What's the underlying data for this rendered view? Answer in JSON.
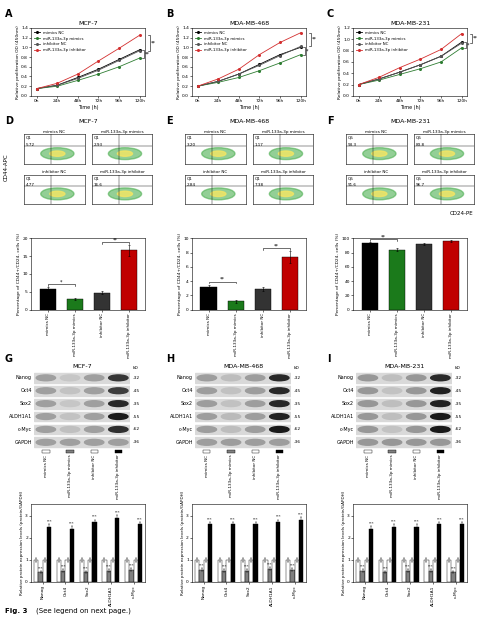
{
  "caption": "Fig. 3",
  "caption_note": "(See legend on next page.)",
  "chart_data": [
    {
      "panel": "A",
      "type": "line",
      "title": "MCF-7",
      "x_label": "Time (h)",
      "y_label": "Relative proliferation OD (450nm)",
      "x": [
        0,
        24,
        48,
        72,
        96,
        120
      ],
      "xlim": [
        -6,
        126
      ],
      "xticks": [
        {
          "value": 0,
          "label": "0h"
        },
        {
          "value": 24,
          "label": "24h"
        },
        {
          "value": 48,
          "label": "48h"
        },
        {
          "value": 72,
          "label": "72h"
        },
        {
          "value": 96,
          "label": "96h"
        },
        {
          "value": 120,
          "label": "120h"
        }
      ],
      "ylim": [
        0,
        1.4
      ],
      "yticks": [
        {
          "value": 0,
          "label": "0.0"
        },
        0.2,
        0.4,
        0.6,
        0.8,
        {
          "value": 1,
          "label": "1.0"
        },
        1.2,
        1.4
      ],
      "legend": "upper left",
      "marker": "o",
      "series": [
        {
          "name": "mimics NC",
          "color": "#000000",
          "values": [
            0.15,
            0.22,
            0.38,
            0.55,
            0.75,
            0.95
          ]
        },
        {
          "name": "miR-133a-3p mimics",
          "color": "#2e7d32",
          "values": [
            0.15,
            0.2,
            0.32,
            0.45,
            0.6,
            0.78
          ]
        },
        {
          "name": "inhibitor NC",
          "color": "#555555",
          "values": [
            0.15,
            0.22,
            0.36,
            0.53,
            0.73,
            0.93
          ]
        },
        {
          "name": "miR-133a-3p inhibitor",
          "color": "#d32f2f",
          "values": [
            0.15,
            0.26,
            0.45,
            0.72,
            0.98,
            1.25
          ]
        }
      ],
      "significance": [
        {
          "text": "**",
          "series": [
            0,
            1
          ]
        },
        {
          "text": "**",
          "series": [
            2,
            3
          ]
        }
      ]
    },
    {
      "panel": "B",
      "type": "line",
      "title": "MDA-MB-468",
      "x_label": "Time (h)",
      "y_label": "Relative proliferation OD (450nm)",
      "x": [
        0,
        24,
        48,
        72,
        96,
        120
      ],
      "xlim": [
        -6,
        126
      ],
      "xticks": [
        {
          "value": 0,
          "label": "0h"
        },
        {
          "value": 24,
          "label": "24h"
        },
        {
          "value": 48,
          "label": "48h"
        },
        {
          "value": 72,
          "label": "72h"
        },
        {
          "value": 96,
          "label": "96h"
        },
        {
          "value": 120,
          "label": "120h"
        }
      ],
      "ylim": [
        0,
        1.4
      ],
      "yticks": [
        {
          "value": 0,
          "label": "0.0"
        },
        0.2,
        0.4,
        0.6,
        0.8,
        {
          "value": 1,
          "label": "1.0"
        },
        1.2,
        1.4
      ],
      "legend": "upper left",
      "marker": "o",
      "series": [
        {
          "name": "mimics NC",
          "color": "#000000",
          "values": [
            0.2,
            0.3,
            0.45,
            0.65,
            0.85,
            1.0
          ]
        },
        {
          "name": "miR-133a-3p mimics",
          "color": "#2e7d32",
          "values": [
            0.2,
            0.28,
            0.38,
            0.52,
            0.68,
            0.85
          ]
        },
        {
          "name": "inhibitor NC",
          "color": "#555555",
          "values": [
            0.2,
            0.3,
            0.45,
            0.63,
            0.83,
            1.02
          ]
        },
        {
          "name": "miR-133a-3p inhibitor",
          "color": "#d32f2f",
          "values": [
            0.2,
            0.35,
            0.55,
            0.85,
            1.1,
            1.3
          ]
        }
      ],
      "significance": [
        {
          "text": "*",
          "series": [
            0,
            1
          ]
        },
        {
          "text": "**",
          "series": [
            2,
            3
          ]
        }
      ]
    },
    {
      "panel": "C",
      "type": "line",
      "title": "MDA-MB-231",
      "x_label": "Time (h)",
      "y_label": "Relative proliferation OD (450nm)",
      "x": [
        0,
        24,
        48,
        72,
        96,
        120
      ],
      "xlim": [
        -6,
        126
      ],
      "xticks": [
        {
          "value": 0,
          "label": "0h"
        },
        {
          "value": 24,
          "label": "24h"
        },
        {
          "value": 48,
          "label": "48h"
        },
        {
          "value": 72,
          "label": "72h"
        },
        {
          "value": 96,
          "label": "96h"
        },
        {
          "value": 120,
          "label": "120h"
        }
      ],
      "ylim": [
        0,
        1.2
      ],
      "yticks": [
        {
          "value": 0,
          "label": "0.0"
        },
        0.2,
        0.4,
        0.6,
        0.8,
        {
          "value": 1,
          "label": "1.0"
        },
        1.2
      ],
      "legend": "upper left",
      "marker": "o",
      "series": [
        {
          "name": "mimics NC",
          "color": "#000000",
          "values": [
            0.2,
            0.3,
            0.42,
            0.55,
            0.7,
            0.95
          ]
        },
        {
          "name": "miR-133a-3p mimics",
          "color": "#2e7d32",
          "values": [
            0.2,
            0.28,
            0.38,
            0.48,
            0.6,
            0.85
          ]
        },
        {
          "name": "inhibitor NC",
          "color": "#555555",
          "values": [
            0.2,
            0.3,
            0.42,
            0.55,
            0.7,
            0.93
          ]
        },
        {
          "name": "miR-133a-3p inhibitor",
          "color": "#d32f2f",
          "values": [
            0.2,
            0.33,
            0.5,
            0.65,
            0.82,
            1.1
          ]
        }
      ],
      "significance": [
        {
          "text": "*",
          "series": [
            0,
            1
          ]
        },
        {
          "text": "**",
          "series": [
            2,
            3
          ]
        }
      ]
    },
    {
      "type": "bar",
      "y_label": "Percentage of CD44+/CD24- cells (%)",
      "categories": [
        "mimics NC",
        "miR-133a-3p mimics",
        "inhibitor NC",
        "miR-133a-3p inhibitor"
      ],
      "values": [
        5.72,
        2.93,
        4.77,
        16.6
      ],
      "errors": [
        0.6,
        0.4,
        0.5,
        1.5
      ],
      "colors": [
        "#000000",
        "#1b7a1b",
        "#333333",
        "#c00000"
      ],
      "ylim": [
        0,
        20
      ],
      "yticks": [
        0,
        5,
        10,
        15,
        20
      ],
      "significance": [
        {
          "text": "*",
          "series": [
            0,
            1
          ]
        },
        {
          "text": "**",
          "series": [
            2,
            3
          ]
        }
      ]
    },
    {
      "type": "bar",
      "y_label": "Percentage of CD44+/CD24- cells (%)",
      "categories": [
        "mimics NC",
        "miR-133a-3p mimics",
        "inhibitor NC",
        "miR-133a-3p inhibitor"
      ],
      "values": [
        3.2,
        1.17,
        2.84,
        7.38
      ],
      "errors": [
        0.3,
        0.2,
        0.3,
        0.8
      ],
      "colors": [
        "#000000",
        "#1b7a1b",
        "#333333",
        "#c00000"
      ],
      "ylim": [
        0,
        10
      ],
      "yticks": [
        0,
        2,
        4,
        6,
        8,
        10
      ],
      "significance": [
        {
          "text": "**",
          "series": [
            0,
            1
          ]
        },
        {
          "text": "**",
          "series": [
            2,
            3
          ]
        }
      ]
    },
    {
      "type": "bar",
      "y_label": "Percentage of CD44+/CD24- cells (%)",
      "categories": [
        "mimics NC",
        "miR-133a-3p mimics",
        "inhibitor NC",
        "miR-133a-3p inhibitor"
      ],
      "values": [
        93.3,
        83.8,
        91.6,
        96.7
      ],
      "errors": [
        1.5,
        2,
        1.5,
        1.5
      ],
      "colors": [
        "#000000",
        "#1b7a1b",
        "#333333",
        "#c00000"
      ],
      "ylim": [
        0,
        100
      ],
      "yticks": [
        0,
        20,
        40,
        60,
        80,
        100
      ],
      "significance": [
        {
          "text": "**",
          "series": [
            0,
            1
          ]
        }
      ]
    },
    {
      "type": "bar",
      "y_label": "Relative protein expression levels (protein/GAPDH)",
      "categories": [
        "Nanog",
        "Oct4",
        "Sox2",
        "ALDH1A1",
        "c-Myc"
      ],
      "ylim": [
        0,
        3.5
      ],
      "yticks": [
        0,
        1,
        2,
        3
      ],
      "series": [
        {
          "name": "mimics NC",
          "color": "#ffffff",
          "values": [
            1,
            1,
            1,
            1,
            1
          ],
          "errors": [
            0.08,
            0.08,
            0.08,
            0.08,
            0.08
          ]
        },
        {
          "name": "miR-133a-3p mimics",
          "color": "#7f7f7f",
          "values": [
            0.45,
            0.5,
            0.45,
            0.5,
            0.55
          ],
          "errors": [
            0.06,
            0.06,
            0.06,
            0.06,
            0.06
          ],
          "significance": "***"
        },
        {
          "name": "inhibitor NC",
          "color": "#ffffff",
          "values": [
            1,
            1,
            1,
            1,
            1
          ],
          "errors": [
            0.08,
            0.08,
            0.08,
            0.08,
            0.08
          ]
        },
        {
          "name": "miR-133a-3p inhibitor",
          "color": "#000000",
          "values": [
            2.5,
            2.4,
            2.7,
            2.9,
            2.6
          ],
          "errors": [
            0.12,
            0.12,
            0.12,
            0.12,
            0.12
          ],
          "significance": "***"
        }
      ]
    },
    {
      "type": "bar",
      "y_label": "Relative protein expression levels (protein/GAPDH)",
      "categories": [
        "Nanog",
        "Oct4",
        "Sox2",
        "ALDH1A1",
        "c-Myc"
      ],
      "ylim": [
        0,
        3.5
      ],
      "yticks": [
        0,
        1,
        2,
        3
      ],
      "series": [
        {
          "name": "mimics NC",
          "color": "#ffffff",
          "values": [
            1,
            1,
            1,
            1,
            1
          ],
          "errors": [
            0.08,
            0.08,
            0.08,
            0.08,
            0.08
          ]
        },
        {
          "name": "miR-133a-3p mimics",
          "color": "#7f7f7f",
          "values": [
            0.55,
            0.5,
            0.5,
            0.6,
            0.55
          ],
          "errors": [
            0.06,
            0.06,
            0.06,
            0.06,
            0.06
          ],
          "significance": "***"
        },
        {
          "name": "inhibitor NC",
          "color": "#ffffff",
          "values": [
            1,
            1,
            1,
            1,
            1
          ],
          "errors": [
            0.08,
            0.08,
            0.08,
            0.08,
            0.08
          ]
        },
        {
          "name": "miR-133a-3p inhibitor",
          "color": "#000000",
          "values": [
            2.6,
            2.6,
            2.6,
            2.7,
            2.8
          ],
          "errors": [
            0.12,
            0.12,
            0.12,
            0.12,
            0.12
          ],
          "significance": "***"
        }
      ]
    },
    {
      "type": "bar",
      "y_label": "Relative protein expression levels (protein/GAPDH)",
      "categories": [
        "Nanog",
        "Oct4",
        "Sox2",
        "ALDH1A1",
        "c-Myc"
      ],
      "ylim": [
        0,
        3.5
      ],
      "yticks": [
        0,
        1,
        2,
        3
      ],
      "series": [
        {
          "name": "mimics NC",
          "color": "#ffffff",
          "values": [
            1,
            1,
            1,
            1,
            1
          ],
          "errors": [
            0.08,
            0.08,
            0.08,
            0.08,
            0.08
          ]
        },
        {
          "name": "miR-133a-3p mimics",
          "color": "#7f7f7f",
          "values": [
            0.5,
            0.45,
            0.5,
            0.5,
            0.45
          ],
          "errors": [
            0.06,
            0.06,
            0.06,
            0.06,
            0.06
          ],
          "significance": "***"
        },
        {
          "name": "inhibitor NC",
          "color": "#ffffff",
          "values": [
            1,
            1,
            1,
            1,
            1
          ],
          "errors": [
            0.08,
            0.08,
            0.08,
            0.08,
            0.08
          ]
        },
        {
          "name": "miR-133a-3p inhibitor",
          "color": "#000000",
          "values": [
            2.4,
            2.5,
            2.5,
            2.6,
            2.6
          ],
          "errors": [
            0.12,
            0.12,
            0.12,
            0.12,
            0.12
          ],
          "significance": "***"
        }
      ]
    }
  ],
  "flow_cytometry": {
    "y_label": "CD44-APC",
    "x_label": "CD24-PE",
    "panels": [
      {
        "panel": "D",
        "title": "MCF-7",
        "gate": "Q1",
        "labels": [
          "mimics NC",
          "miR-133a-3p mimics",
          "inhibitor NC",
          "miR-133a-3p inhibitor"
        ],
        "values": [
          5.72,
          2.93,
          4.77,
          16.6
        ],
        "value_labels": [
          "5.72",
          "2.93",
          "4.77",
          "16.6"
        ]
      },
      {
        "panel": "E",
        "title": "MDA-MB-468",
        "gate": "Q1",
        "labels": [
          "mimics NC",
          "miR-133a-3p mimics",
          "inhibitor NC",
          "miR-133a-3p inhibitor"
        ],
        "values": [
          3.2,
          1.17,
          2.84,
          7.38
        ],
        "value_labels": [
          "3.20",
          "1.17",
          "2.84",
          "7.38"
        ]
      },
      {
        "panel": "F",
        "title": "MDA-MB-231",
        "gate": "Q5",
        "labels": [
          "mimics NC",
          "miR-133a-3p mimics",
          "inhibitor NC",
          "miR-133a-3p inhibitor"
        ],
        "values": [
          93.3,
          83.8,
          91.6,
          96.7
        ],
        "value_labels": [
          "93.3",
          "83.8",
          "91.6",
          "96.7"
        ]
      }
    ]
  },
  "western_blots": [
    {
      "panel": "G",
      "title": "MCF-7",
      "unit": "kD",
      "proteins": [
        "Nanog",
        "Oct4",
        "Sox2",
        "ALDH1A1",
        "c-Myc",
        "GAPDH"
      ],
      "size_labels": [
        "-32",
        "-45",
        "-35",
        "-55",
        "-62",
        "-36"
      ]
    },
    {
      "panel": "H",
      "title": "MDA-MB-468",
      "unit": "kD",
      "proteins": [
        "Nanog",
        "Oct4",
        "Sox2",
        "ALDH1A1",
        "c-Myc",
        "GAPDH"
      ],
      "size_labels": [
        "-32",
        "-45",
        "-35",
        "-55",
        "-62",
        "-36"
      ]
    },
    {
      "panel": "I",
      "title": "MDA-MB-231",
      "unit": "kD",
      "proteins": [
        "Nanog",
        "Oct4",
        "Sox2",
        "ALDH1A1",
        "c-Myc",
        "GAPDH"
      ],
      "size_labels": [
        "-32",
        "-45",
        "-35",
        "-55",
        "-62",
        "-36"
      ]
    }
  ]
}
